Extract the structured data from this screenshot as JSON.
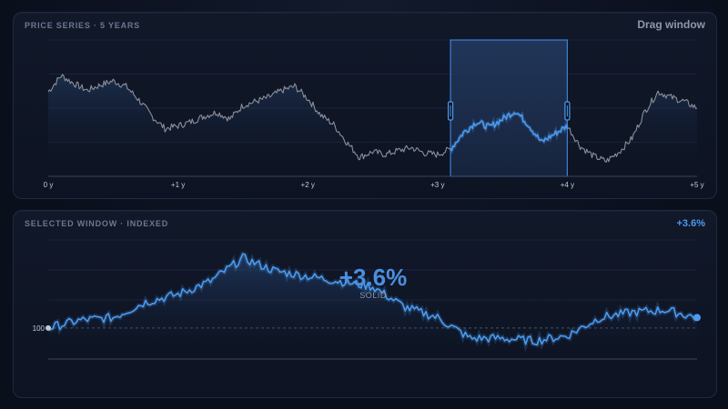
{
  "top_panel": {
    "title": "PRICE SERIES · 5 YEARS",
    "action_label": "Drag window"
  },
  "bottom_panel": {
    "title": "SELECTED WINDOW · INDEXED",
    "change_badge": "+3.6%",
    "big_change": "+3.6%",
    "big_change_sub": "SOLID",
    "baseline_label": "100"
  },
  "colors": {
    "accent": "#4a9bf0",
    "series_muted": "#8a8f99",
    "selection_fill": "#1b2a48",
    "selection_border": "#3d7fd6"
  },
  "chart_data": [
    {
      "type": "line",
      "x": [
        0,
        0.1,
        0.2,
        0.3,
        0.4,
        0.5,
        0.6,
        0.7,
        0.8,
        0.9,
        1.0,
        1.1,
        1.2,
        1.3,
        1.4,
        1.5,
        1.6,
        1.7,
        1.8,
        1.9,
        2.0,
        2.1,
        2.2,
        2.3,
        2.4,
        2.5,
        2.6,
        2.7,
        2.8,
        2.9,
        3.0,
        3.1,
        3.2,
        3.3,
        3.4,
        3.5,
        3.6,
        3.7,
        3.8,
        3.9,
        4.0,
        4.1,
        4.2,
        4.3,
        4.4,
        4.5,
        4.6,
        4.7,
        4.8,
        4.9,
        5.0
      ],
      "series": [
        {
          "values": [
            62,
            74,
            68,
            63,
            67,
            70,
            66,
            56,
            44,
            35,
            37,
            40,
            44,
            47,
            42,
            52,
            55,
            58,
            63,
            66,
            57,
            45,
            38,
            25,
            14,
            18,
            16,
            19,
            21,
            17,
            16,
            20,
            32,
            40,
            36,
            42,
            48,
            38,
            25,
            31,
            37,
            22,
            15,
            11,
            18,
            28,
            48,
            62,
            58,
            55,
            50
          ]
        }
      ],
      "xlabel": "",
      "ylabel": "",
      "x_tick_labels": [
        "0 y",
        "+1 y",
        "+2 y",
        "+3 y",
        "+4 y",
        "+5 y"
      ],
      "selected_window": [
        3.1,
        4.0
      ],
      "grid": true
    },
    {
      "type": "line",
      "x": [
        0,
        0.05,
        0.1,
        0.15,
        0.2,
        0.25,
        0.3,
        0.35,
        0.4,
        0.45,
        0.5,
        0.55,
        0.6,
        0.65,
        0.7,
        0.75,
        0.8,
        0.85,
        0.9,
        0.95,
        1.0
      ],
      "series": [
        {
          "values": [
            100,
            103,
            104,
            110,
            113,
            118,
            127,
            122,
            120,
            118,
            116,
            108,
            104,
            96,
            96,
            95,
            97,
            104,
            106,
            107,
            104
          ]
        }
      ],
      "baseline": 100,
      "end_change": "+3.6%",
      "grid": true
    }
  ]
}
